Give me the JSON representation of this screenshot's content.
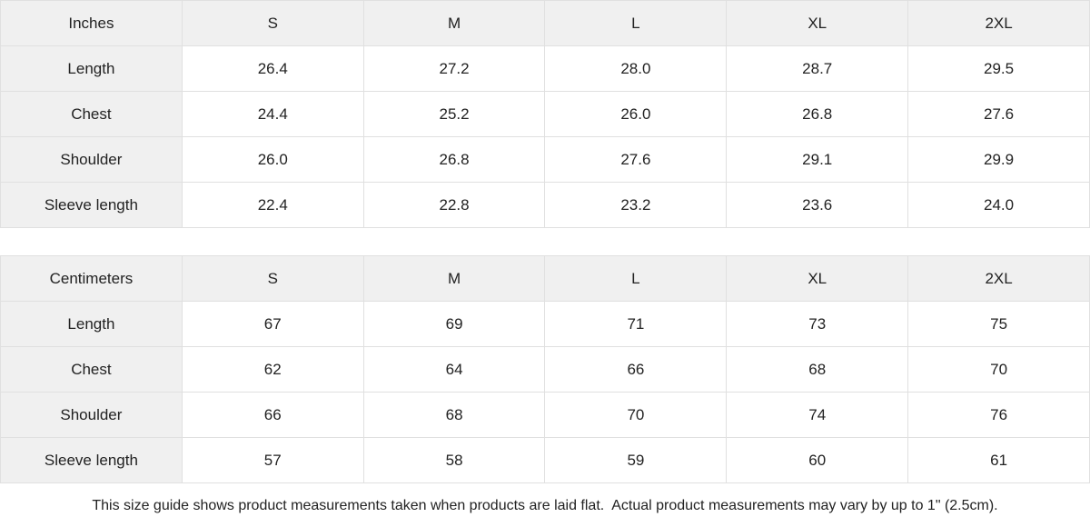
{
  "chart_data": [
    {
      "type": "table",
      "title": "Inches",
      "columns": [
        "S",
        "M",
        "L",
        "XL",
        "2XL"
      ],
      "row_labels": [
        "Length",
        "Chest",
        "Shoulder",
        "Sleeve length"
      ],
      "rows": [
        [
          "26.4",
          "27.2",
          "28.0",
          "28.7",
          "29.5"
        ],
        [
          "24.4",
          "25.2",
          "26.0",
          "26.8",
          "27.6"
        ],
        [
          "26.0",
          "26.8",
          "27.6",
          "29.1",
          "29.9"
        ],
        [
          "22.4",
          "22.8",
          "23.2",
          "23.6",
          "24.0"
        ]
      ]
    },
    {
      "type": "table",
      "title": "Centimeters",
      "columns": [
        "S",
        "M",
        "L",
        "XL",
        "2XL"
      ],
      "row_labels": [
        "Length",
        "Chest",
        "Shoulder",
        "Sleeve length"
      ],
      "rows": [
        [
          "67",
          "69",
          "71",
          "73",
          "75"
        ],
        [
          "62",
          "64",
          "66",
          "68",
          "70"
        ],
        [
          "66",
          "68",
          "70",
          "74",
          "76"
        ],
        [
          "57",
          "58",
          "59",
          "60",
          "61"
        ]
      ]
    }
  ],
  "footer": {
    "note": "This size guide shows product measurements taken when products are laid flat.  Actual product measurements may vary by up to 1\" (2.5cm)."
  },
  "colors": {
    "header_bg": "#f0f0f0",
    "border": "#e0e0e0",
    "text": "#222222",
    "cell_bg": "#ffffff"
  }
}
